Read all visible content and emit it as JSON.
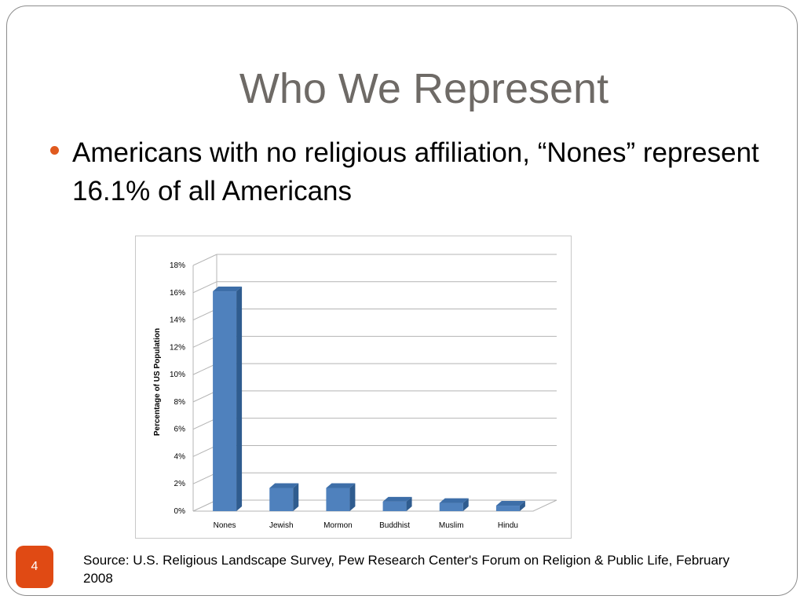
{
  "slide": {
    "title": "Who We Represent",
    "bullet": "Americans with no religious affiliation, “Nones” represent 16.1% of all Americans",
    "source": "Source: U.S. Religious Landscape Survey, Pew Research Center's Forum on Religion & Public Life, February 2008",
    "page_number": "4"
  },
  "colors": {
    "bar_front": "#4f81bd",
    "bar_side": "#2f5c8f",
    "bar_top": "#3d6ea8",
    "accent": "#e04a14"
  },
  "chart_data": {
    "type": "bar",
    "title": "",
    "xlabel": "",
    "ylabel": "Percentage of US Population",
    "categories": [
      "Nones",
      "Jewish",
      "Mormon",
      "Buddhist",
      "Muslim",
      "Hindu"
    ],
    "values": [
      16.1,
      1.7,
      1.7,
      0.7,
      0.6,
      0.4
    ],
    "ylim": [
      0,
      18
    ],
    "yticks": [
      "0%",
      "2%",
      "4%",
      "6%",
      "8%",
      "10%",
      "12%",
      "14%",
      "16%",
      "18%"
    ],
    "grid": true,
    "legend": "none"
  }
}
